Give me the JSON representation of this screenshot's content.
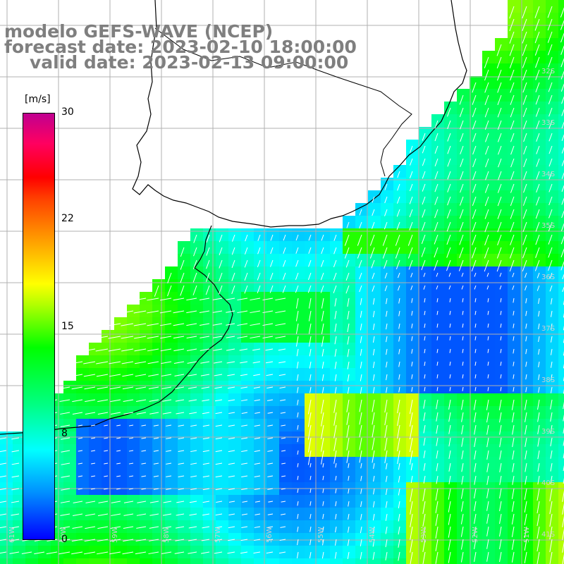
{
  "title": {
    "line1": "modelo GEFS-WAVE (NCEP)",
    "line2": "forecast date: 2023-02-10 18:00:00",
    "line3": "valid date: 2023-02-13 09:00:00"
  },
  "colorbar": {
    "unit": "[m/s]",
    "ticks": [
      "30",
      "22",
      "15",
      "8",
      "0"
    ],
    "tick_values": [
      30,
      22,
      15,
      8,
      0
    ],
    "range": [
      0,
      30
    ],
    "colors": [
      "#0000ff",
      "#0090ff",
      "#00ffff",
      "#00ff7f",
      "#00ff00",
      "#b0ff00",
      "#ffff00",
      "#ffa000",
      "#ff0000",
      "#c00090"
    ]
  },
  "map": {
    "lat_labels": [
      "32S",
      "33S",
      "34S",
      "35S",
      "36S",
      "37S",
      "38S",
      "39S",
      "40S",
      "41S"
    ],
    "lon_labels": [
      "61W",
      "60W",
      "59W",
      "58W",
      "57W",
      "56W",
      "55W",
      "54W",
      "53W",
      "52W",
      "51W"
    ],
    "land_color": "#ffffff",
    "grid_color": "#b0b0b0",
    "coast_color": "#000000",
    "arrow_color": "#ffffff"
  }
}
